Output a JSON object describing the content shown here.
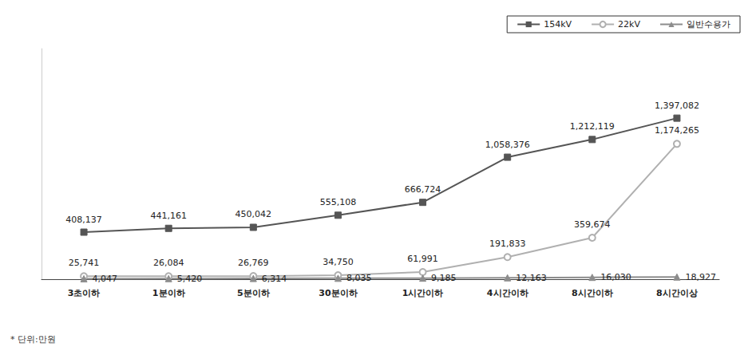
{
  "chart_data": {
    "type": "line",
    "categories": [
      "3초이하",
      "1분이하",
      "5분이하",
      "30분이하",
      "1시간이하",
      "4시간이하",
      "8시간이하",
      "8시간이상"
    ],
    "series": [
      {
        "name": "154kV",
        "color": "#555555",
        "marker": "square",
        "line_style": "solid",
        "values": [
          408137,
          441161,
          450042,
          555108,
          666724,
          1058376,
          1212119,
          1397082
        ],
        "value_labels": [
          "408,137",
          "441,161",
          "450,042",
          "555,108",
          "666,724",
          "1,058,376",
          "1,212,119",
          "1,397,082"
        ]
      },
      {
        "name": "22kV",
        "color": "#b0b0b0",
        "marker": "circle",
        "line_style": "solid",
        "values": [
          25741,
          26084,
          26769,
          34750,
          61991,
          191833,
          359674,
          1174265
        ],
        "value_labels": [
          "25,741",
          "26,084",
          "26,769",
          "34,750",
          "61,991",
          "191,833",
          "359,674",
          "1,174,265"
        ]
      },
      {
        "name": "일반수용가",
        "color": "#8c8c8c",
        "marker": "triangle",
        "line_style": "solid",
        "values": [
          4047,
          5420,
          6314,
          8035,
          9185,
          12163,
          16030,
          18927
        ],
        "value_labels": [
          "4,047",
          "5,420",
          "6,314",
          "8,035",
          "9,185",
          "12,163",
          "16,030",
          "18,927"
        ]
      }
    ],
    "ylim": [
      0,
      2000000
    ],
    "tick_labels": "x",
    "grid": false,
    "legend": "top-right",
    "data_labels": true,
    "annotation": "* 단위:만원"
  }
}
